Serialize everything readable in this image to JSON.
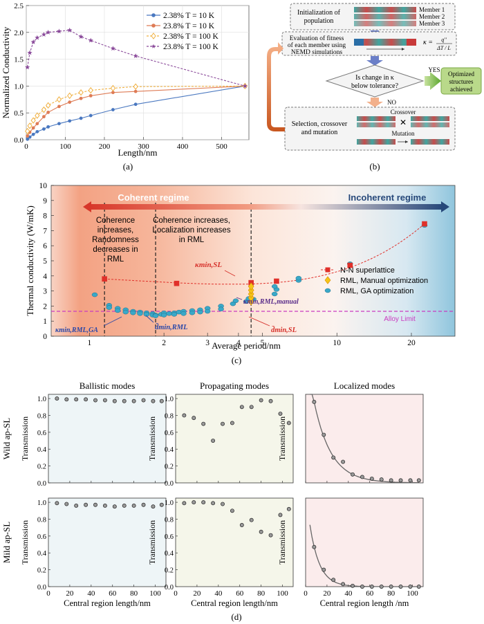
{
  "panel_a": {
    "label": "(a)",
    "xlabel": "Length/nm",
    "ylabel": "Normalized Conductivity"
  },
  "panel_b": {
    "label": "(b)",
    "init": [
      "Initialization of",
      "population"
    ],
    "members": [
      "Member 1",
      "Member 2",
      "Member 3"
    ],
    "eval": [
      "Evaluation of fitness",
      "of each member using",
      "NEMD simulations"
    ],
    "formula_lhs": "κ =",
    "formula_num": "q''",
    "formula_den": "ΔT / L",
    "decision": [
      "Is change in κ",
      "below tolerance?"
    ],
    "yes": "YES",
    "no": "NO",
    "result": [
      "Optimized",
      "structures",
      "achieved"
    ],
    "selection": [
      "Selection, crossover",
      "and mutation"
    ],
    "crossover": "Crossover",
    "mutation": "Mutation"
  },
  "panel_c": {
    "label": "(c)",
    "xlabel": "Average period/nm",
    "ylabel": "Thermal conductivity (W/mK)",
    "coherent": "Coherent regime",
    "incoherent": "Incoherent regime",
    "region1": [
      "Coherence",
      "increases,",
      "Randomness",
      "decreases in",
      "RML"
    ],
    "region2": [
      "Coherence increases,",
      "Localization increases",
      "in RML"
    ],
    "alloy": "Alloy Limit",
    "k_min_sl": "κmin,SL",
    "k_min_manual": "κmin,RML,manual",
    "k_min_ga": "κmin,RML,GA",
    "d_min_rml": "d̄min,RML",
    "d_min_sl": "d̄min,SL"
  },
  "panel_d": {
    "label": "(d)",
    "col_titles": [
      "Ballistic modes",
      "Propagating modes",
      "Localized modes"
    ],
    "row_labels": [
      "Wild ap-SL",
      "Mild ap-SL"
    ],
    "ylabel": "Transmission",
    "xlabels": [
      "Central region length/nm",
      "Central region length/nm",
      "Central region length /nm"
    ]
  },
  "chart_data": [
    {
      "type": "line",
      "panel": "a",
      "xlabel": "Length/nm",
      "ylabel": "Normalized Conductivity",
      "xlim": [
        0,
        570
      ],
      "ylim": [
        0,
        2.5
      ],
      "xticks": [
        0,
        100,
        200,
        300,
        400,
        500
      ],
      "yticks": [
        0.0,
        0.5,
        1.0,
        1.5,
        2.0,
        2.5
      ],
      "legend": "top-right",
      "series": [
        {
          "name": "2.38% T = 10 K",
          "color": "#4a78c0",
          "marker": "circle",
          "x": [
            3,
            9,
            18,
            28,
            45,
            56,
            84,
            111,
            140,
            165,
            222,
            280,
            560
          ],
          "y": [
            0.01,
            0.05,
            0.1,
            0.15,
            0.2,
            0.24,
            0.3,
            0.35,
            0.4,
            0.45,
            0.56,
            0.66,
            1.0
          ]
        },
        {
          "name": "23.8% T = 10 K",
          "color": "#de7b55",
          "marker": "circle",
          "x": [
            3,
            9,
            18,
            28,
            45,
            56,
            84,
            111,
            140,
            165,
            222,
            280,
            560
          ],
          "y": [
            0.07,
            0.14,
            0.22,
            0.3,
            0.43,
            0.51,
            0.62,
            0.7,
            0.77,
            0.82,
            0.88,
            0.9,
            1.0
          ]
        },
        {
          "name": "2.38% T = 100 K",
          "color": "#f0b040",
          "marker": "diamond",
          "x": [
            3,
            9,
            18,
            28,
            45,
            56,
            84,
            111,
            140,
            165,
            222,
            280,
            560
          ],
          "y": [
            0.16,
            0.26,
            0.36,
            0.45,
            0.56,
            0.64,
            0.75,
            0.82,
            0.88,
            0.92,
            0.96,
            0.99,
            1.0
          ]
        },
        {
          "name": "23.8% T = 100 K",
          "color": "#8a4a9a",
          "marker": "star",
          "x": [
            3,
            9,
            18,
            28,
            45,
            56,
            84,
            111,
            140,
            165,
            222,
            280,
            560
          ],
          "y": [
            1.35,
            1.62,
            1.82,
            1.9,
            1.96,
            2.0,
            2.02,
            2.04,
            1.92,
            1.85,
            1.7,
            1.56,
            1.0
          ]
        }
      ]
    },
    {
      "type": "scatter",
      "panel": "c",
      "xlabel": "Average period/nm",
      "ylabel": "Thermal conductivity (W/mK)",
      "xscale": "log",
      "xlim": [
        0.7,
        30
      ],
      "ylim": [
        0,
        10
      ],
      "xticks": [
        1,
        2,
        3,
        4,
        5,
        10,
        20
      ],
      "yticks": [
        0,
        1,
        2,
        3,
        4,
        5,
        6,
        7,
        8,
        9,
        10
      ],
      "alloy_limit": 1.65,
      "vlines": [
        1.15,
        1.85,
        4.5
      ],
      "legend": "right",
      "series": [
        {
          "name": "N-N superlattice",
          "color": "#e0302a",
          "marker": "square",
          "x": [
            1.15,
            2.25,
            4.5,
            5.7,
            11.3,
            22.6
          ],
          "y": [
            3.8,
            3.5,
            3.55,
            3.65,
            4.7,
            7.45
          ]
        },
        {
          "name": "RML, Manual optimization",
          "color": "#f5c518",
          "marker": "diamond",
          "x": [
            4.5,
            4.5,
            4.5,
            4.5,
            4.5
          ],
          "y": [
            2.3,
            2.55,
            2.8,
            3.05,
            3.3
          ]
        },
        {
          "name": "RML, GA optimization",
          "color": "#3aa8c8",
          "marker": "circle",
          "x": [
            1.05,
            1.2,
            1.2,
            1.3,
            1.3,
            1.4,
            1.4,
            1.5,
            1.5,
            1.6,
            1.6,
            1.7,
            1.7,
            1.8,
            1.8,
            1.85,
            1.85,
            1.95,
            2.0,
            2.0,
            2.1,
            2.2,
            2.2,
            2.3,
            2.4,
            2.4,
            2.6,
            2.6,
            2.8,
            2.8,
            3.0,
            3.0,
            3.4,
            3.4,
            3.8,
            3.9,
            4.3,
            4.4,
            4.6,
            5.6,
            5.7,
            5.6,
            7.0,
            7.0,
            11.3,
            22.6
          ],
          "y": [
            2.75,
            2.05,
            1.9,
            1.85,
            1.7,
            1.75,
            1.6,
            1.65,
            1.55,
            1.6,
            1.5,
            1.55,
            1.45,
            1.5,
            1.4,
            1.4,
            1.35,
            1.45,
            1.55,
            1.4,
            1.5,
            1.55,
            1.45,
            1.6,
            1.65,
            1.5,
            1.7,
            1.55,
            1.75,
            1.6,
            1.85,
            1.65,
            2.0,
            1.8,
            2.15,
            2.35,
            2.3,
            2.5,
            2.45,
            2.8,
            3.1,
            3.3,
            3.7,
            3.85,
            4.8,
            7.35
          ]
        }
      ]
    },
    {
      "type": "scatter",
      "panel": "d",
      "xlabel": "Central region length/nm",
      "ylabel": "Transmission",
      "xlim": [
        0,
        110
      ],
      "xticks": [
        0,
        20,
        40,
        60,
        80,
        100
      ],
      "subplots": [
        {
          "row": "Wild ap-SL",
          "col": "Ballistic modes",
          "ylim": [
            0,
            1.05
          ],
          "yticks": [
            0.0,
            0.2,
            0.4,
            0.6,
            0.8,
            1.0
          ],
          "x": [
            8,
            17,
            26,
            35,
            44,
            53,
            62,
            71,
            80,
            89,
            98,
            106
          ],
          "y": [
            1.0,
            0.99,
            0.99,
            0.99,
            0.98,
            0.98,
            0.97,
            0.97,
            0.97,
            0.98,
            0.97,
            0.97
          ]
        },
        {
          "row": "Wild ap-SL",
          "col": "Propagating modes",
          "ylim": [
            0,
            1.05
          ],
          "yticks": [
            0.0,
            0.2,
            0.4,
            0.6,
            0.8,
            1.0
          ],
          "x": [
            8,
            17,
            26,
            35,
            44,
            53,
            62,
            71,
            80,
            89,
            98,
            106
          ],
          "y": [
            0.8,
            0.77,
            0.7,
            0.5,
            0.7,
            0.71,
            0.9,
            0.9,
            0.98,
            0.97,
            0.82,
            0.71
          ]
        },
        {
          "row": "Wild ap-SL",
          "col": "Localized modes",
          "ylim": [
            0,
            1.05
          ],
          "fit": "exponential",
          "x": [
            8,
            17,
            26,
            35,
            44,
            53,
            62,
            71,
            80,
            89,
            98,
            106
          ],
          "y": [
            0.96,
            0.57,
            0.3,
            0.25,
            0.1,
            0.07,
            0.05,
            0.04,
            0.03,
            0.03,
            0.03,
            0.03
          ]
        },
        {
          "row": "Mild ap-SL",
          "col": "Ballistic modes",
          "ylim": [
            0,
            1.05
          ],
          "yticks": [
            0.0,
            0.2,
            0.4,
            0.6,
            0.8,
            1.0
          ],
          "x": [
            8,
            17,
            26,
            35,
            44,
            53,
            62,
            71,
            80,
            89,
            98,
            106
          ],
          "y": [
            0.99,
            0.98,
            0.96,
            0.97,
            0.97,
            0.96,
            0.95,
            0.96,
            0.96,
            0.97,
            0.95,
            0.97
          ]
        },
        {
          "row": "Mild ap-SL",
          "col": "Propagating modes",
          "ylim": [
            0,
            1.05
          ],
          "yticks": [
            0.0,
            0.2,
            0.4,
            0.6,
            0.8,
            1.0
          ],
          "x": [
            8,
            17,
            26,
            35,
            44,
            53,
            62,
            71,
            80,
            89,
            98,
            106
          ],
          "y": [
            0.99,
            1.0,
            1.0,
            0.99,
            0.98,
            0.9,
            0.73,
            0.79,
            0.65,
            0.61,
            0.85,
            0.92
          ]
        },
        {
          "row": "Mild ap-SL",
          "col": "Localized modes",
          "ylim": [
            0,
            1.05
          ],
          "fit": "exponential",
          "x": [
            8,
            17,
            26,
            35,
            44,
            53,
            62,
            71,
            80,
            89,
            98,
            106
          ],
          "y": [
            0.47,
            0.2,
            0.08,
            0.03,
            0.01,
            0.0,
            0.0,
            0.0,
            0.0,
            0.0,
            0.0,
            0.0
          ]
        }
      ]
    }
  ]
}
